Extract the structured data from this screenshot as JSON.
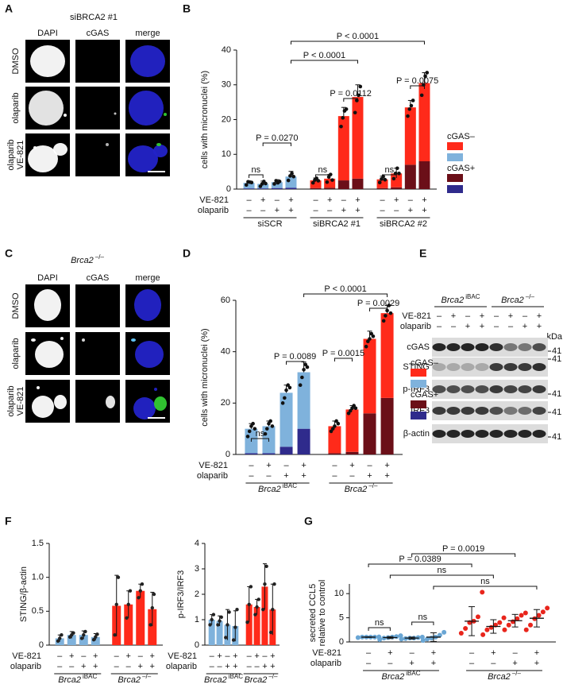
{
  "panel_a": {
    "panel": "A",
    "title": "siBRCA2 #1",
    "columns": [
      "DAPI",
      "cGAS",
      "merge"
    ],
    "rows": [
      [
        "DMSO"
      ],
      [
        "olaparib"
      ],
      [
        "olaparib",
        "VE-821"
      ]
    ]
  },
  "panel_c": {
    "panel": "C",
    "title": {
      "gene": "Brca2",
      "sup": "–/–"
    },
    "columns": [
      "DAPI",
      "cGAS",
      "merge"
    ],
    "rows": [
      [
        "DMSO"
      ],
      [
        "olaparib"
      ],
      [
        "olaparib",
        "VE-821"
      ]
    ]
  },
  "panel_e": {
    "panel": "E",
    "groups": [
      {
        "gene": "Brca2",
        "sup": "iBAC"
      },
      {
        "gene": "Brca2",
        "sup": "–/–"
      }
    ],
    "conditions": [
      {
        "label": "VE-821",
        "signs": [
          "–",
          "+",
          "–",
          "+",
          "–",
          "+",
          "–",
          "+"
        ]
      },
      {
        "label": "olaparib",
        "signs": [
          "–",
          "–",
          "+",
          "+",
          "–",
          "–",
          "+",
          "+"
        ]
      }
    ],
    "kda_label": "kDa",
    "rows": [
      {
        "label": "cGAS",
        "marker": 41
      },
      {
        "label": "STING",
        "marker": 41
      },
      {
        "label": "p-IRF3",
        "marker": 41
      },
      {
        "label": "IRF3",
        "marker": 41
      },
      {
        "label": "β-actin",
        "marker": 41
      }
    ]
  },
  "chart_data": [
    {
      "panel": "B",
      "type": "stacked_bar",
      "ylabel": [
        "cells with micronuclei (%)"
      ],
      "ylim": [
        0,
        40
      ],
      "yticks": [
        0,
        10,
        20,
        30,
        40
      ],
      "conditions": [
        {
          "label": "VE-821",
          "signs": [
            "–",
            "+",
            "–",
            "+",
            "–",
            "+",
            "–",
            "+",
            "–",
            "+",
            "–",
            "+"
          ]
        },
        {
          "label": "olaparib",
          "signs": [
            "–",
            "–",
            "+",
            "+",
            "–",
            "–",
            "+",
            "+",
            "–",
            "–",
            "+",
            "+"
          ]
        }
      ],
      "groups": [
        {
          "label": "siSCR",
          "palette": 0
        },
        {
          "label": "siBRCA2 #1",
          "palette": 1
        },
        {
          "label": "siBRCA2 #2",
          "palette": 1
        }
      ],
      "series": [
        {
          "name": "cGAS+",
          "colors": [
            "#2f2b8c",
            "#6b0f18"
          ],
          "values": [
            0.2,
            0.2,
            0.3,
            0.4,
            0.3,
            0.4,
            2.5,
            3.0,
            0.3,
            0.5,
            7.0,
            8.0
          ]
        },
        {
          "name": "cGAS–",
          "colors": [
            "#7fb2dc",
            "#ff2a1a"
          ],
          "values": [
            1.6,
            1.3,
            1.7,
            3.2,
            2.2,
            2.6,
            18.5,
            23.5,
            2.5,
            4.0,
            16.5,
            22.5
          ],
          "errors": [
            0.5,
            0.8,
            0.7,
            1.5,
            0.7,
            1.2,
            2.5,
            3.5,
            0.9,
            1.5,
            2.0,
            3.0
          ]
        }
      ],
      "points": [
        [
          1.2,
          2.1,
          2.0,
          1.9
        ],
        [
          0.8,
          1.5,
          2.2,
          1.6
        ],
        [
          1.5,
          2.4,
          1.8,
          2.2
        ],
        [
          2.5,
          3.8,
          4.5,
          3.6
        ],
        [
          1.8,
          2.6,
          3.1,
          2.4
        ],
        [
          2.0,
          3.5,
          4.2,
          2.6
        ],
        [
          18.0,
          20.5,
          22.5,
          23.0
        ],
        [
          22.0,
          25.5,
          27.0,
          29.5
        ],
        [
          1.9,
          2.9,
          3.6,
          2.7
        ],
        [
          3.0,
          4.5,
          6.0,
          4.5
        ],
        [
          21.0,
          23.0,
          24.0,
          25.5
        ],
        [
          27.0,
          30.0,
          32.5,
          33.5
        ]
      ],
      "annotations": [
        "P < 0.0001",
        "P < 0.0001",
        "P = 0.0270",
        "P = 0.0112",
        "P = 0.0075",
        "ns",
        "ns",
        "ns"
      ]
    },
    {
      "panel": "D",
      "type": "stacked_bar",
      "ylabel": [
        "cells with micronuclei (%)"
      ],
      "ylim": [
        0,
        60
      ],
      "yticks": [
        0,
        20,
        40,
        60
      ],
      "conditions": [
        {
          "label": "VE-821",
          "signs": [
            "–",
            "+",
            "–",
            "+",
            "–",
            "+",
            "–",
            "+"
          ]
        },
        {
          "label": "olaparib",
          "signs": [
            "–",
            "–",
            "+",
            "+",
            "–",
            "–",
            "+",
            "+"
          ]
        }
      ],
      "groups": [
        {
          "gene": "Brca2",
          "sup": "iBAC",
          "palette": 0
        },
        {
          "gene": "Brca2",
          "sup": "–/–",
          "palette": 1
        }
      ],
      "series": [
        {
          "name": "cGAS+",
          "colors": [
            "#2f2b8c",
            "#6b0f18"
          ],
          "values": [
            0.5,
            0.5,
            3,
            10,
            0.5,
            1,
            16,
            22
          ]
        },
        {
          "name": "cGAS–",
          "colors": [
            "#7fb2dc",
            "#ff2a1a"
          ],
          "values": [
            9.5,
            10.5,
            21,
            22,
            10.5,
            16.5,
            29,
            33
          ],
          "errors": [
            2,
            2,
            3,
            4,
            2,
            1.5,
            3,
            3
          ]
        }
      ],
      "points": [
        [
          7,
          9,
          11,
          12,
          10
        ],
        [
          8,
          10,
          12,
          13,
          11
        ],
        [
          20,
          22,
          25,
          27,
          26
        ],
        [
          27,
          30,
          33,
          35,
          34
        ],
        [
          9,
          10,
          11,
          13,
          12
        ],
        [
          16,
          17,
          18,
          19,
          18
        ],
        [
          42,
          44,
          45,
          47,
          46
        ],
        [
          52,
          54,
          56,
          58,
          55
        ]
      ],
      "annotations": [
        "P < 0.0001",
        "P = 0.0029",
        "P = 0.0089",
        "P = 0.0015",
        "ns"
      ]
    },
    {
      "panel": "F",
      "type": "bar",
      "ylabel": [
        "STING/β-actin"
      ],
      "ylim": [
        0,
        1.5
      ],
      "yticks": [
        0,
        0.5,
        {
          "value": 1,
          "label": "1.0"
        },
        1.5
      ],
      "conditions": [
        {
          "label": "VE-821",
          "signs": [
            "–",
            "+",
            "–",
            "+",
            "–",
            "+",
            "–",
            "+"
          ]
        },
        {
          "label": "olaparib",
          "signs": [
            "–",
            "–",
            "+",
            "+",
            "–",
            "–",
            "+",
            "+"
          ]
        }
      ],
      "groups": [
        {
          "gene": "Brca2",
          "sup": "iBAC",
          "palette": 0
        },
        {
          "gene": "Brca2",
          "sup": "–/–",
          "palette": 1
        }
      ],
      "colors": [
        "#7fb2dc",
        "#ff2a1a"
      ],
      "values": [
        0.1,
        0.15,
        0.15,
        0.12,
        0.58,
        0.6,
        0.8,
        0.53
      ],
      "errors": [
        0.05,
        0.05,
        0.06,
        0.05,
        0.45,
        0.2,
        0.1,
        0.25
      ],
      "points": [
        [
          0.06,
          0.1,
          0.15
        ],
        [
          0.12,
          0.15,
          0.18
        ],
        [
          0.1,
          0.15,
          0.2
        ],
        [
          0.08,
          0.12,
          0.16
        ],
        [
          0.15,
          0.6,
          1.0
        ],
        [
          0.4,
          0.6,
          0.8
        ],
        [
          0.7,
          0.8,
          0.9
        ],
        [
          0.3,
          0.55,
          0.75
        ]
      ]
    },
    {
      "type": "bar",
      "ylabel": [
        "p-IRF3/IRF3"
      ],
      "ylim": [
        0,
        4
      ],
      "yticks": [
        0,
        1,
        2,
        3,
        4
      ],
      "conditions": [
        {
          "label": "VE-821",
          "signs": [
            "–",
            "+",
            "–",
            "+",
            "–",
            "+",
            "–",
            "+"
          ]
        },
        {
          "label": "olaparib",
          "signs": [
            "–",
            "–",
            "+",
            "+",
            "–",
            "–",
            "+",
            "+"
          ]
        }
      ],
      "groups": [
        {
          "gene": "Brca2",
          "sup": "iBAC",
          "palette": 0
        },
        {
          "gene": "Brca2",
          "sup": "–/–",
          "palette": 1
        }
      ],
      "colors": [
        "#7fb2dc",
        "#ff2a1a"
      ],
      "values": [
        1.0,
        0.95,
        0.8,
        0.75,
        1.6,
        1.5,
        2.3,
        1.4
      ],
      "errors": [
        0.2,
        0.2,
        0.6,
        0.6,
        0.7,
        0.3,
        0.9,
        1.0
      ],
      "points": [
        [
          0.8,
          1.0,
          1.2
        ],
        [
          0.8,
          0.95,
          1.1
        ],
        [
          0.3,
          0.8,
          1.3
        ],
        [
          0.2,
          0.7,
          1.4
        ],
        [
          0.9,
          1.6,
          2.3
        ],
        [
          1.2,
          1.5,
          1.8
        ],
        [
          1.4,
          2.4,
          3.1
        ],
        [
          0.5,
          1.4,
          2.4
        ]
      ]
    },
    {
      "panel": "G",
      "type": "dot",
      "ylabel": [
        "secreted CCL5",
        "relative to control"
      ],
      "ylim": [
        0,
        12
      ],
      "yticks": [
        0,
        5,
        10
      ],
      "conditions": [
        {
          "label": "VE-821",
          "signs": [
            "–",
            "+",
            "–",
            "+",
            "–",
            "+",
            "–",
            "+"
          ]
        },
        {
          "label": "olaparib",
          "signs": [
            "–",
            "–",
            "+",
            "+",
            "–",
            "–",
            "+",
            "+"
          ]
        }
      ],
      "groups": [
        {
          "gene": "Brca2",
          "sup": "iBAC",
          "palette": 0
        },
        {
          "gene": "Brca2",
          "sup": "–/–",
          "palette": 1
        }
      ],
      "colors": [
        "#6aa6d4",
        "#e8251c"
      ],
      "values": [
        1.0,
        0.9,
        0.8,
        1.0,
        4.3,
        3.2,
        4.4,
        4.9
      ],
      "errors": [
        0.05,
        0.2,
        0.2,
        0.9,
        3.0,
        1.4,
        1.3,
        1.8
      ],
      "points": [
        [
          0.9,
          1.0,
          1.0,
          1.0,
          1.0,
          1.05
        ],
        [
          0.5,
          0.8,
          0.9,
          1.0,
          1.1,
          1.3
        ],
        [
          0.6,
          0.7,
          0.8,
          0.8,
          0.9,
          1.0
        ],
        [
          0.3,
          0.6,
          0.8,
          1.0,
          1.4,
          2.0
        ],
        [
          1.8,
          2.8,
          4.0,
          4.3,
          5.2,
          10.3
        ],
        [
          1.5,
          2.5,
          3.0,
          3.5,
          4.0,
          5.0
        ],
        [
          2.5,
          3.5,
          4.2,
          4.8,
          5.5,
          6.0
        ],
        [
          2.5,
          3.5,
          4.8,
          5.5,
          6.2,
          7.0
        ]
      ],
      "annotations": [
        "P = 0.0019",
        "P = 0.0389",
        "ns",
        "ns",
        "ns",
        "ns"
      ]
    }
  ]
}
